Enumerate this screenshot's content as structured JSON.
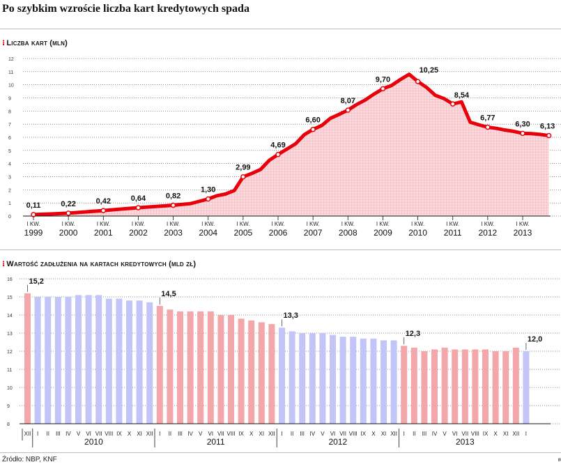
{
  "title": "Po szybkim wzroście liczba kart kredytowych spada",
  "source": "Źródło: NBP, KNF",
  "logo": "ɩʀ",
  "colors": {
    "accent": "#e8000b",
    "pink_bar": "#f4a7ab",
    "blue_bar": "#c3c4f7",
    "area_fill": "#fbd9dc"
  },
  "chart_data": [
    {
      "type": "area",
      "title": "Liczba kart (mln)",
      "ylim": [
        0,
        12
      ],
      "yticks": [
        0,
        1,
        2,
        3,
        4,
        5,
        6,
        7,
        8,
        9,
        10,
        11,
        12
      ],
      "x_labels": [
        {
          "q": "I KW.",
          "year": "1999",
          "x": 1999
        },
        {
          "q": "I KW.",
          "year": "2000",
          "x": 2000
        },
        {
          "q": "I KW.",
          "year": "2001",
          "x": 2001
        },
        {
          "q": "I KW.",
          "year": "2002",
          "x": 2002
        },
        {
          "q": "I KW.",
          "year": "2003",
          "x": 2003
        },
        {
          "q": "I KW.",
          "year": "2004",
          "x": 2004
        },
        {
          "q": "I KW.",
          "year": "2005",
          "x": 2005
        },
        {
          "q": "I KW.",
          "year": "2006",
          "x": 2006
        },
        {
          "q": "I KW.",
          "year": "2007",
          "x": 2007
        },
        {
          "q": "I KW.",
          "year": "2008",
          "x": 2008
        },
        {
          "q": "I KW.",
          "year": "2009",
          "x": 2009
        },
        {
          "q": "I KW.",
          "year": "2010",
          "x": 2010
        },
        {
          "q": "I KW.",
          "year": "2011",
          "x": 2011
        },
        {
          "q": "I KW.",
          "year": "2012",
          "x": 2012
        },
        {
          "q": "I KW.",
          "year": "2013",
          "x": 2013
        }
      ],
      "series": [
        {
          "x": [
            1999,
            1999.5,
            2000,
            2000.5,
            2001,
            2001.5,
            2002,
            2002.5,
            2003,
            2003.5,
            2004,
            2004.25,
            2004.5,
            2004.75,
            2005,
            2005.25,
            2005.5,
            2005.75,
            2006,
            2006.25,
            2006.5,
            2006.75,
            2007,
            2007.25,
            2007.5,
            2007.75,
            2008,
            2008.25,
            2008.5,
            2008.75,
            2009,
            2009.25,
            2009.5,
            2009.75,
            2010,
            2010.25,
            2010.5,
            2010.75,
            2011,
            2011.25,
            2011.5,
            2011.75,
            2012,
            2012.25,
            2012.5,
            2012.75,
            2013,
            2013.25,
            2013.5,
            2013.75
          ],
          "y": [
            0.11,
            0.16,
            0.22,
            0.32,
            0.42,
            0.53,
            0.64,
            0.73,
            0.82,
            0.95,
            1.3,
            1.55,
            1.68,
            1.95,
            2.99,
            3.25,
            3.55,
            4.25,
            4.69,
            5.1,
            5.5,
            6.2,
            6.6,
            6.9,
            7.45,
            7.75,
            8.07,
            8.5,
            8.85,
            9.3,
            9.7,
            9.95,
            10.4,
            10.8,
            10.25,
            9.8,
            9.2,
            8.95,
            8.54,
            8.7,
            7.15,
            6.95,
            6.77,
            6.68,
            6.55,
            6.45,
            6.3,
            6.28,
            6.22,
            6.13
          ]
        }
      ],
      "labels": [
        {
          "x": 1999,
          "y": 0.11,
          "text": "0,11"
        },
        {
          "x": 2000,
          "y": 0.22,
          "text": "0,22"
        },
        {
          "x": 2001,
          "y": 0.42,
          "text": "0,42"
        },
        {
          "x": 2002,
          "y": 0.64,
          "text": "0,64"
        },
        {
          "x": 2003,
          "y": 0.82,
          "text": "0,82"
        },
        {
          "x": 2004,
          "y": 1.3,
          "text": "1,30"
        },
        {
          "x": 2005,
          "y": 2.99,
          "text": "2,99"
        },
        {
          "x": 2006,
          "y": 4.69,
          "text": "4,69"
        },
        {
          "x": 2007,
          "y": 6.6,
          "text": "6,60"
        },
        {
          "x": 2008,
          "y": 8.07,
          "text": "8,07"
        },
        {
          "x": 2009,
          "y": 9.7,
          "text": "9,70"
        },
        {
          "x": 2010,
          "y": 10.25,
          "text": "10,25"
        },
        {
          "x": 2011,
          "y": 8.54,
          "text": "8,54"
        },
        {
          "x": 2012,
          "y": 6.77,
          "text": "6,77"
        },
        {
          "x": 2013,
          "y": 6.3,
          "text": "6,30"
        },
        {
          "x": 2013.75,
          "y": 6.13,
          "text": "6,13"
        }
      ]
    },
    {
      "type": "bar",
      "title": "Wartość zadłużenia na kartach kredytowych (mld zł)",
      "ylim": [
        8,
        16
      ],
      "yticks": [
        8,
        9,
        10,
        11,
        12,
        13,
        14,
        15,
        16
      ],
      "categories": [
        "XII",
        "I",
        "II",
        "III",
        "IV",
        "V",
        "VI",
        "VII",
        "VIII",
        "IX",
        "X",
        "XI",
        "XII",
        "I",
        "II",
        "III",
        "IV",
        "V",
        "VI",
        "VII",
        "VIII",
        "IX",
        "X",
        "XI",
        "XII",
        "I",
        "II",
        "III",
        "IV",
        "V",
        "VI",
        "VII",
        "VIII",
        "IX",
        "X",
        "XI",
        "XII",
        "I",
        "II",
        "III",
        "IV",
        "V",
        "VI",
        "VII",
        "VIII",
        "IX",
        "X",
        "XI",
        "XII",
        "I"
      ],
      "values": [
        15.2,
        15.0,
        15.0,
        15.0,
        15.0,
        15.1,
        15.1,
        15.1,
        14.9,
        14.9,
        14.8,
        14.8,
        14.7,
        14.5,
        14.3,
        14.2,
        14.2,
        14.2,
        14.2,
        14.0,
        14.0,
        13.8,
        13.7,
        13.6,
        13.5,
        13.3,
        13.1,
        13.0,
        13.0,
        13.0,
        12.9,
        12.8,
        12.8,
        12.7,
        12.7,
        12.6,
        12.6,
        12.3,
        12.2,
        12.0,
        12.1,
        12.2,
        12.1,
        12.1,
        12.1,
        12.1,
        12.0,
        12.0,
        12.2,
        12.0
      ],
      "colors": [
        "pink",
        "blue",
        "blue",
        "blue",
        "blue",
        "blue",
        "blue",
        "blue",
        "blue",
        "blue",
        "blue",
        "blue",
        "blue",
        "pink",
        "pink",
        "pink",
        "pink",
        "pink",
        "pink",
        "pink",
        "pink",
        "pink",
        "pink",
        "pink",
        "pink",
        "blue",
        "blue",
        "blue",
        "blue",
        "blue",
        "blue",
        "blue",
        "blue",
        "blue",
        "blue",
        "blue",
        "blue",
        "pink",
        "pink",
        "pink",
        "pink",
        "pink",
        "pink",
        "pink",
        "pink",
        "pink",
        "pink",
        "pink",
        "pink",
        "blue"
      ],
      "years": [
        {
          "label": "2010",
          "index": 1
        },
        {
          "label": "2011",
          "index": 13
        },
        {
          "label": "2012",
          "index": 25
        },
        {
          "label": "2013",
          "index": 37
        }
      ],
      "labels": [
        {
          "index": 0,
          "text": "15,2"
        },
        {
          "index": 13,
          "text": "14,5"
        },
        {
          "index": 25,
          "text": "13,3"
        },
        {
          "index": 37,
          "text": "12,3"
        },
        {
          "index": 49,
          "text": "12,0"
        }
      ]
    }
  ]
}
